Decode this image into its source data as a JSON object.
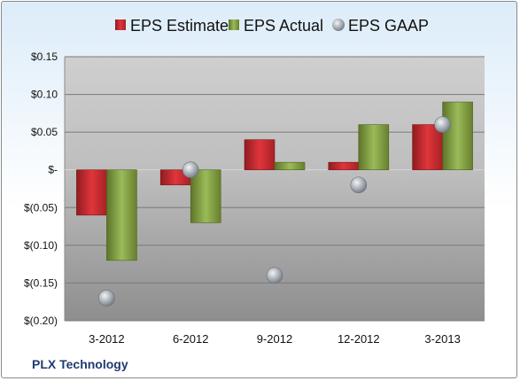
{
  "company": "PLX Technology",
  "colors": {
    "estimate": "#c62a2f",
    "actual": "#7e9b3c",
    "gaap": "#a8b0b8"
  },
  "chart_data": {
    "type": "bar",
    "title": "",
    "xlabel": "",
    "ylabel": "",
    "categories": [
      "3-2012",
      "6-2012",
      "9-2012",
      "12-2012",
      "3-2013"
    ],
    "ylim": [
      -0.2,
      0.15
    ],
    "yticks": [
      0.15,
      0.1,
      0.05,
      0,
      -0.05,
      -0.1,
      -0.15,
      -0.2
    ],
    "ytick_labels": [
      "$0.15",
      "$0.10",
      "$0.05",
      "$-",
      "$(0.05)",
      "$(0.10)",
      "$(0.15)",
      "$(0.20)"
    ],
    "grid": true,
    "legend_position": "top",
    "series": [
      {
        "name": "EPS Estimate",
        "kind": "bar",
        "values": [
          -0.06,
          -0.02,
          0.04,
          0.01,
          0.06
        ]
      },
      {
        "name": "EPS Actual",
        "kind": "bar",
        "values": [
          -0.12,
          -0.07,
          0.01,
          0.06,
          0.09
        ]
      },
      {
        "name": "EPS GAAP",
        "kind": "marker",
        "values": [
          -0.17,
          0.0,
          -0.14,
          -0.02,
          0.06
        ]
      }
    ]
  }
}
